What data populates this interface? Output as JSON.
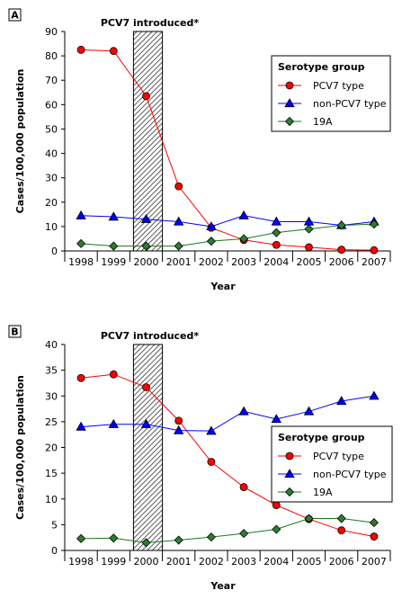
{
  "chart_data": [
    {
      "panel": "A",
      "type": "line",
      "annotation": "PCV7 introduced*",
      "introduced_between": [
        "2000",
        "2001"
      ],
      "xlabel": "Year",
      "ylabel": "Cases/100,000 population",
      "categories": [
        "1998",
        "1999",
        "2000",
        "2001",
        "2002",
        "2003",
        "2004",
        "2005",
        "2006",
        "2007"
      ],
      "ylim": [
        0,
        90
      ],
      "yticks": [
        0,
        10,
        20,
        30,
        40,
        50,
        60,
        70,
        80,
        90
      ],
      "legend_title": "Serotype group",
      "legend_position": "top-right",
      "series": [
        {
          "name": "PCV7 type",
          "color": "#ff0000",
          "marker": "circle",
          "values": [
            82.5,
            82,
            63.5,
            26.5,
            9.5,
            4.5,
            2.5,
            1.5,
            0.5,
            0.3
          ]
        },
        {
          "name": "non-PCV7 type",
          "color": "#0000ff",
          "marker": "triangle",
          "values": [
            14.5,
            14,
            13,
            12,
            10,
            14.5,
            12,
            12,
            10.5,
            12
          ]
        },
        {
          "name": "19A",
          "color": "#008000",
          "marker": "diamond",
          "values": [
            3,
            2,
            2,
            2,
            4,
            5,
            7.5,
            9,
            10.5,
            11
          ]
        }
      ]
    },
    {
      "panel": "B",
      "type": "line",
      "annotation": "PCV7 introduced*",
      "introduced_between": [
        "2000",
        "2001"
      ],
      "xlabel": "Year",
      "ylabel": "Cases/100,000 population",
      "categories": [
        "1998",
        "1999",
        "2000",
        "2001",
        "2002",
        "2003",
        "2004",
        "2005",
        "2006",
        "2007"
      ],
      "ylim": [
        0,
        40
      ],
      "yticks": [
        0,
        5,
        10,
        15,
        20,
        25,
        30,
        35,
        40
      ],
      "legend_title": "Serotype group",
      "legend_position": "right",
      "series": [
        {
          "name": "PCV7 type",
          "color": "#ff0000",
          "marker": "circle",
          "values": [
            33.5,
            34.2,
            31.7,
            25.2,
            17.2,
            12.3,
            8.8,
            6.1,
            3.9,
            2.7
          ]
        },
        {
          "name": "non-PCV7 type",
          "color": "#0000ff",
          "marker": "triangle",
          "values": [
            24,
            24.5,
            24.5,
            23.3,
            23.2,
            27,
            25.5,
            27,
            29,
            30
          ]
        },
        {
          "name": "19A",
          "color": "#008000",
          "marker": "diamond",
          "values": [
            2.3,
            2.4,
            1.5,
            2,
            2.6,
            3.3,
            4.1,
            6.2,
            6.2,
            5.4
          ]
        }
      ]
    }
  ]
}
